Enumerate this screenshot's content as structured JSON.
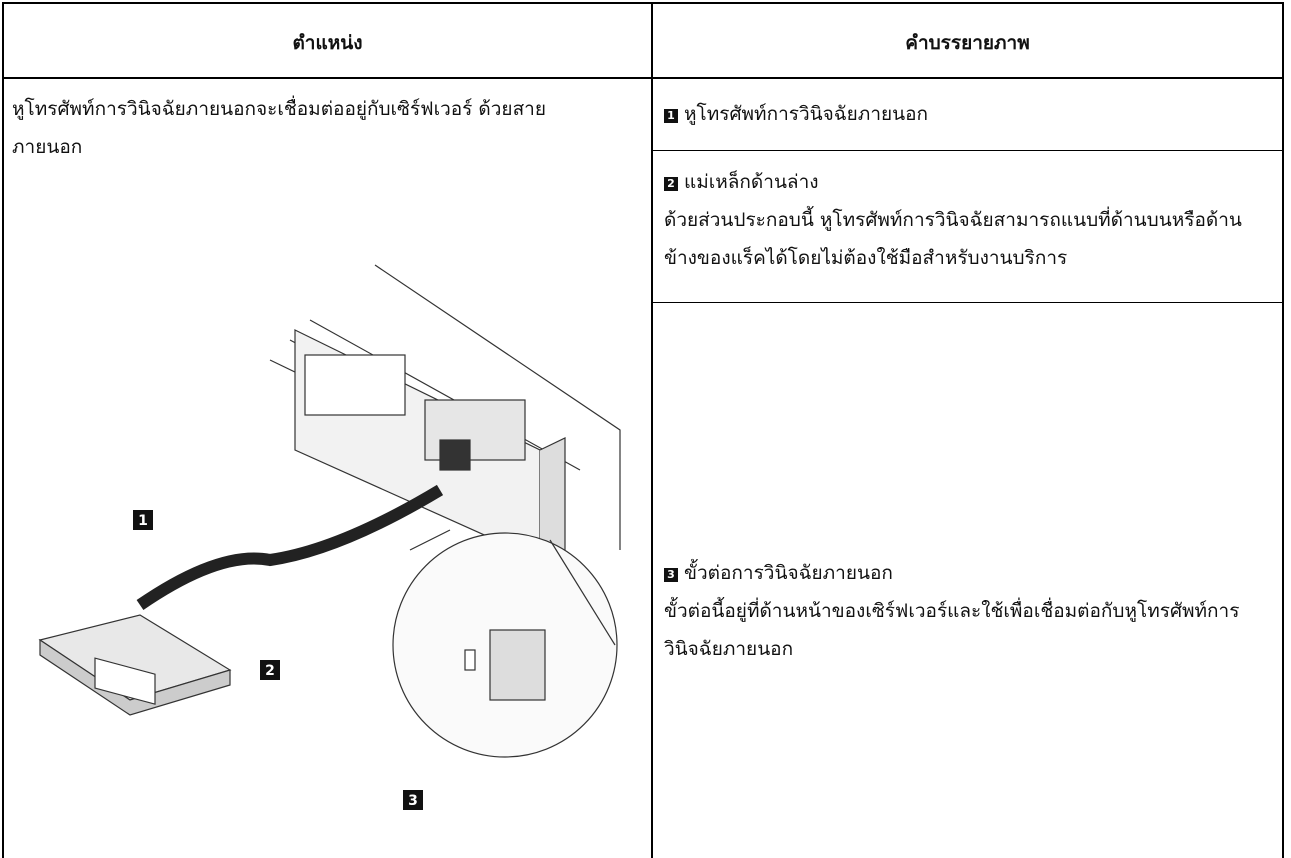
{
  "table": {
    "header": [
      "ตำแหน่ง",
      "คำบรรยายภาพ"
    ],
    "location_text": "หูโทรศัพท์การวินิจฉัยภายนอกจะเชื่อมต่ออยู่กับเซิร์ฟเวอร์ ด้วยสายภายนอก",
    "items": [
      {
        "badge": "1",
        "title": "หูโทรศัพท์การวินิจฉัยภายนอก"
      },
      {
        "badge": "2",
        "title": "แม่เหล็กด้านล่าง",
        "description": "ด้วยส่วนประกอบนี้ หูโทรศัพท์การวินิจฉัยสามารถแนบที่ด้านบนหรือด้านข้างของแร็คได้โดยไม่ต้องใช้มือสำหรับงานบริการ"
      },
      {
        "badge": "3",
        "title": "ขั้วต่อการวินิจฉัยภายนอก",
        "description": "ขั้วต่อนี้อยู่ที่ด้านหน้าของเซิร์ฟเวอร์และใช้เพื่อเชื่อมต่อกับหูโทรศัพท์การวินิจฉัยภายนอก"
      }
    ]
  },
  "figure": {
    "callouts": [
      "1",
      "2",
      "3"
    ]
  }
}
